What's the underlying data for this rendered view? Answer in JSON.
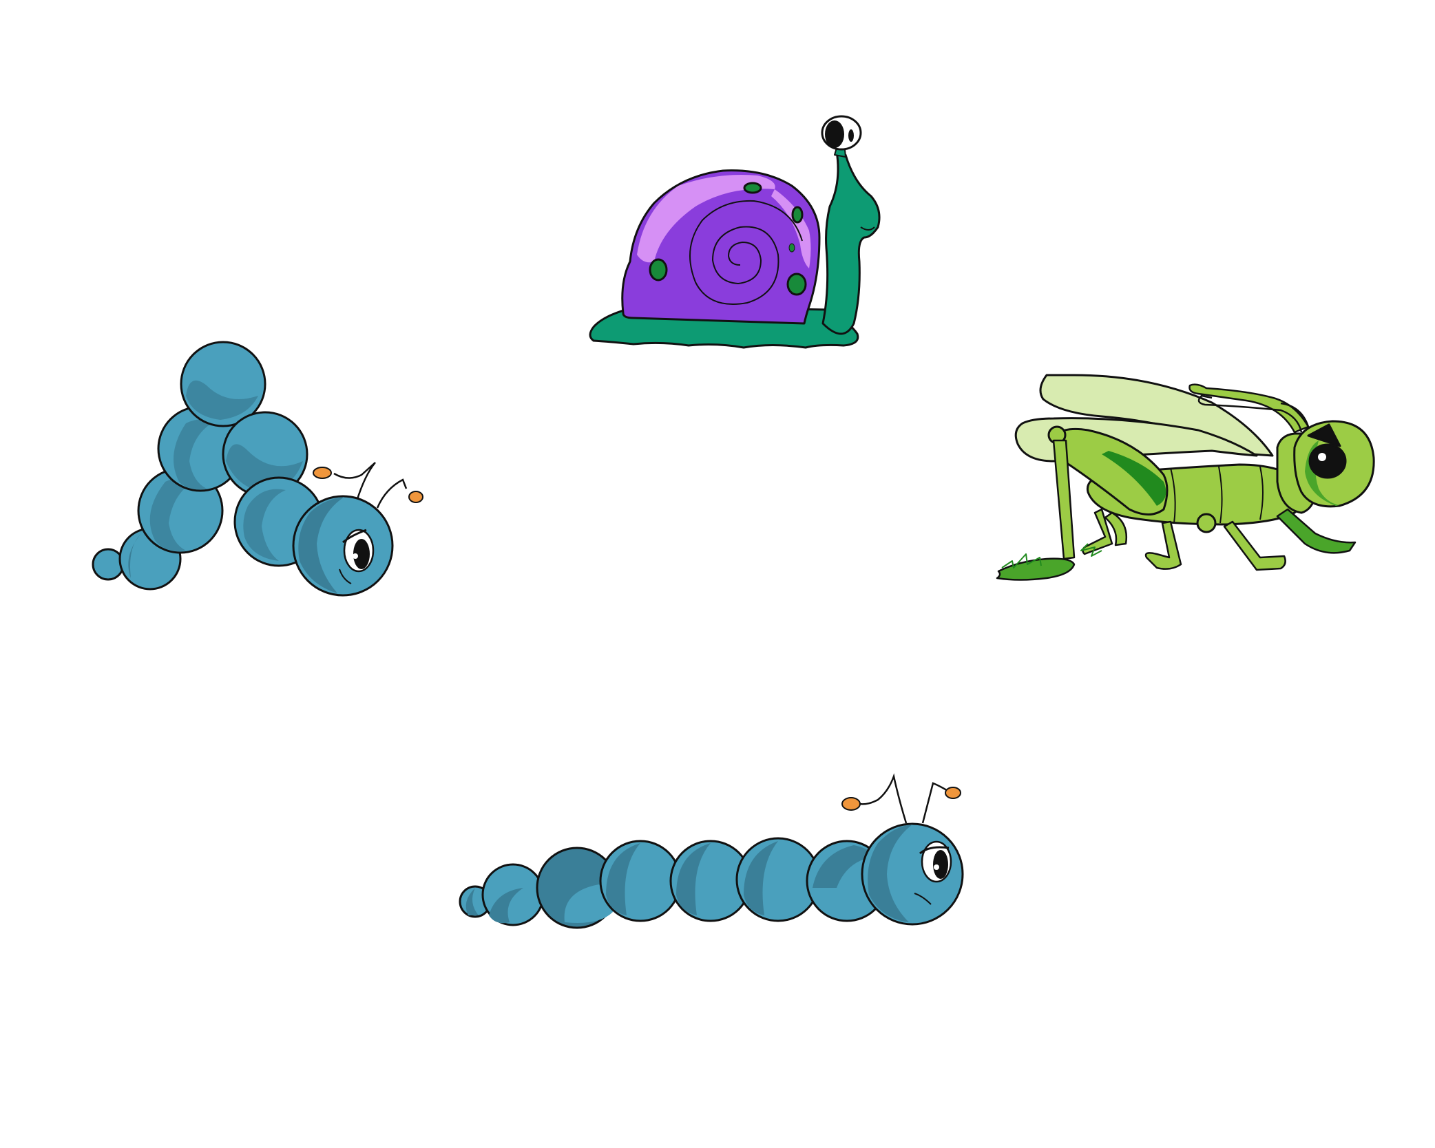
{
  "scene": {
    "background": "#ffffff",
    "characters": [
      {
        "name": "snail",
        "shell_color": "#8a3ddc",
        "shell_highlight": "#d690f5",
        "body_color": "#0d9b73",
        "spot_color": "#188a3a"
      },
      {
        "name": "blue-caterpillar-arched",
        "body_color": "#4aa0bd",
        "shade_color": "#3a7f98",
        "antenna_tip_color": "#f0963c"
      },
      {
        "name": "grasshopper",
        "body_color": "#9ccc45",
        "dark_color": "#218a1e",
        "wing_color": "#d8ebb0"
      },
      {
        "name": "blue-caterpillar-straight",
        "body_color": "#4aa0bd",
        "shade_color": "#3a7f98",
        "antenna_tip_color": "#f0963c"
      }
    ]
  }
}
